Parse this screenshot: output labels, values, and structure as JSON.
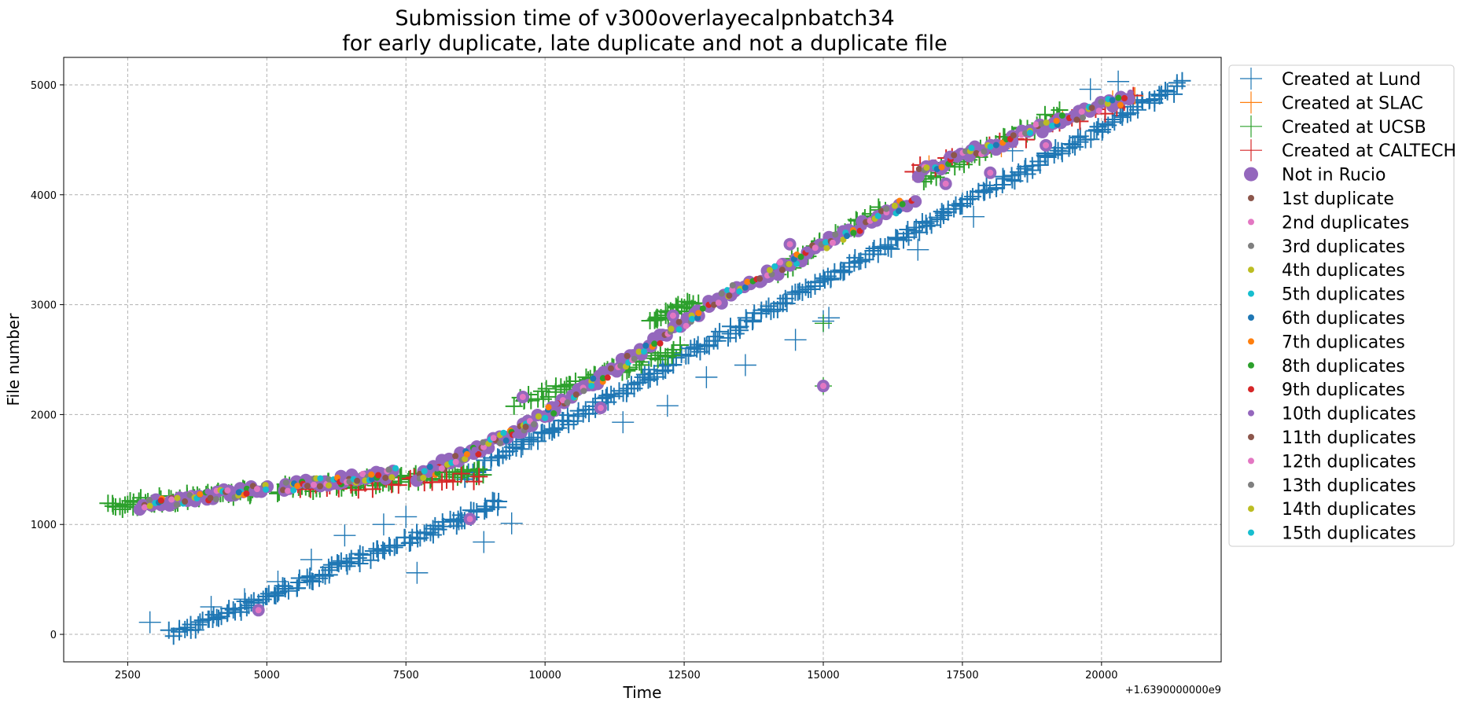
{
  "chart_data": {
    "type": "scatter",
    "title_lines": [
      "Submission time of v300overlayecalpnbatch34",
      "for early duplicate, late duplicate and not a duplicate file"
    ],
    "xlabel": "Time",
    "ylabel": "File number",
    "x_offset_label": "+1.6390000000e9",
    "xlim": [
      1350,
      22150
    ],
    "ylim": [
      -250,
      5250
    ],
    "x_ticks": [
      2500,
      5000,
      7500,
      10000,
      12500,
      15000,
      17500,
      20000
    ],
    "y_ticks": [
      0,
      1000,
      2000,
      3000,
      4000,
      5000
    ],
    "grid": true,
    "legend_position": "outside-right",
    "series": [
      {
        "name": "Created at Lund",
        "marker": "plus",
        "color": "#1f77b4",
        "bands": [
          {
            "x": [
              3300,
              9200
            ],
            "y": [
              0,
              1200
            ],
            "n": 120
          },
          {
            "x": [
              8600,
              21400
            ],
            "y": [
              1450,
              5000
            ],
            "n": 260
          }
        ],
        "outliers": [
          [
            2900,
            110
          ],
          [
            4000,
            250
          ],
          [
            4600,
            320
          ],
          [
            5200,
            480
          ],
          [
            5800,
            680
          ],
          [
            6400,
            900
          ],
          [
            7100,
            1000
          ],
          [
            7500,
            1070
          ],
          [
            7700,
            560
          ],
          [
            8900,
            840
          ],
          [
            9400,
            1010
          ],
          [
            9600,
            1730
          ],
          [
            11400,
            1930
          ],
          [
            12200,
            2080
          ],
          [
            12900,
            2340
          ],
          [
            13600,
            2450
          ],
          [
            14500,
            2680
          ],
          [
            15000,
            2850
          ],
          [
            15100,
            2880
          ],
          [
            16700,
            3500
          ],
          [
            17700,
            3800
          ],
          [
            17500,
            3920
          ],
          [
            18400,
            4400
          ],
          [
            20300,
            5030
          ],
          [
            19800,
            4960
          ]
        ]
      },
      {
        "name": "Created at SLAC",
        "marker": "plus",
        "color": "#ff7f0e",
        "points": [
          [
            16900,
            4280
          ],
          [
            17800,
            4350
          ],
          [
            18200,
            4420
          ],
          [
            19300,
            4700
          ],
          [
            20200,
            4870
          ],
          [
            20600,
            4900
          ]
        ]
      },
      {
        "name": "Created at UCSB",
        "marker": "plus",
        "color": "#2ca02c",
        "bands": [
          {
            "x": [
              2200,
              4800
            ],
            "y": [
              1170,
              1310
            ],
            "n": 60
          },
          {
            "x": [
              5200,
              8900
            ],
            "y": [
              1320,
              1480
            ],
            "n": 70
          },
          {
            "x": [
              9500,
              12400
            ],
            "y": [
              2100,
              2600
            ],
            "n": 50
          },
          {
            "x": [
              11900,
              12700
            ],
            "y": [
              2850,
              3020
            ],
            "n": 25
          },
          {
            "x": [
              14200,
              16100
            ],
            "y": [
              3300,
              3900
            ],
            "n": 30
          },
          {
            "x": [
              16800,
              19300
            ],
            "y": [
              4140,
              4750
            ],
            "n": 40
          }
        ],
        "points": [
          [
            15000,
            2260
          ],
          [
            15000,
            2830
          ]
        ]
      },
      {
        "name": "Created at CALTECH",
        "marker": "plus",
        "color": "#d62728",
        "bands": [
          {
            "x": [
              5500,
              8800
            ],
            "y": [
              1320,
              1430
            ],
            "n": 25
          },
          {
            "x": [
              16600,
              20600
            ],
            "y": [
              4200,
              4860
            ],
            "n": 22
          }
        ]
      },
      {
        "name": "Not in Rucio",
        "marker": "circle-large",
        "color": "#9467bd",
        "bands": [
          {
            "x": [
              2750,
              5000
            ],
            "y": [
              1180,
              1330
            ],
            "n": 30
          },
          {
            "x": [
              5300,
              7300
            ],
            "y": [
              1340,
              1470
            ],
            "n": 30
          },
          {
            "x": [
              7700,
              9700
            ],
            "y": [
              1430,
              1900
            ],
            "n": 30
          },
          {
            "x": [
              9700,
              13300
            ],
            "y": [
              1900,
              3100
            ],
            "n": 45
          },
          {
            "x": [
              13300,
              16600
            ],
            "y": [
              3100,
              3950
            ],
            "n": 40
          },
          {
            "x": [
              16700,
              20500
            ],
            "y": [
              4200,
              4900
            ],
            "n": 40
          }
        ],
        "points": [
          [
            4850,
            220
          ],
          [
            8650,
            1050
          ],
          [
            9600,
            2160
          ],
          [
            11000,
            2060
          ],
          [
            15000,
            2260
          ],
          [
            12300,
            2900
          ],
          [
            14400,
            3550
          ],
          [
            17200,
            4100
          ],
          [
            18000,
            4200
          ],
          [
            19000,
            4450
          ]
        ]
      },
      {
        "name": "1st duplicate",
        "color": "#8c564b"
      },
      {
        "name": "2nd duplicates",
        "color": "#e377c2"
      },
      {
        "name": "3rd duplicates",
        "color": "#7f7f7f"
      },
      {
        "name": "4th duplicates",
        "color": "#bcbd22"
      },
      {
        "name": "5th duplicates",
        "color": "#17becf"
      },
      {
        "name": "6th duplicates",
        "color": "#1f77b4"
      },
      {
        "name": "7th duplicates",
        "color": "#ff7f0e"
      },
      {
        "name": "8th duplicates",
        "color": "#2ca02c"
      },
      {
        "name": "9th duplicates",
        "color": "#d62728"
      },
      {
        "name": "10th duplicates",
        "color": "#9467bd"
      },
      {
        "name": "11th duplicates",
        "color": "#8c564b"
      },
      {
        "name": "12th duplicates",
        "color": "#e377c2"
      },
      {
        "name": "13th duplicates",
        "color": "#7f7f7f"
      },
      {
        "name": "14th duplicates",
        "color": "#bcbd22"
      },
      {
        "name": "15th duplicates",
        "color": "#17becf"
      }
    ],
    "duplicate_bands": [
      {
        "x": [
          2750,
          5000
        ],
        "y": [
          1180,
          1330
        ],
        "n": 45
      },
      {
        "x": [
          5300,
          7300
        ],
        "y": [
          1340,
          1470
        ],
        "n": 45
      },
      {
        "x": [
          7700,
          9700
        ],
        "y": [
          1430,
          1900
        ],
        "n": 45
      },
      {
        "x": [
          9700,
          13300
        ],
        "y": [
          1900,
          3100
        ],
        "n": 60
      },
      {
        "x": [
          13300,
          16600
        ],
        "y": [
          3100,
          3950
        ],
        "n": 55
      },
      {
        "x": [
          16700,
          20500
        ],
        "y": [
          4200,
          4900
        ],
        "n": 55
      }
    ]
  }
}
